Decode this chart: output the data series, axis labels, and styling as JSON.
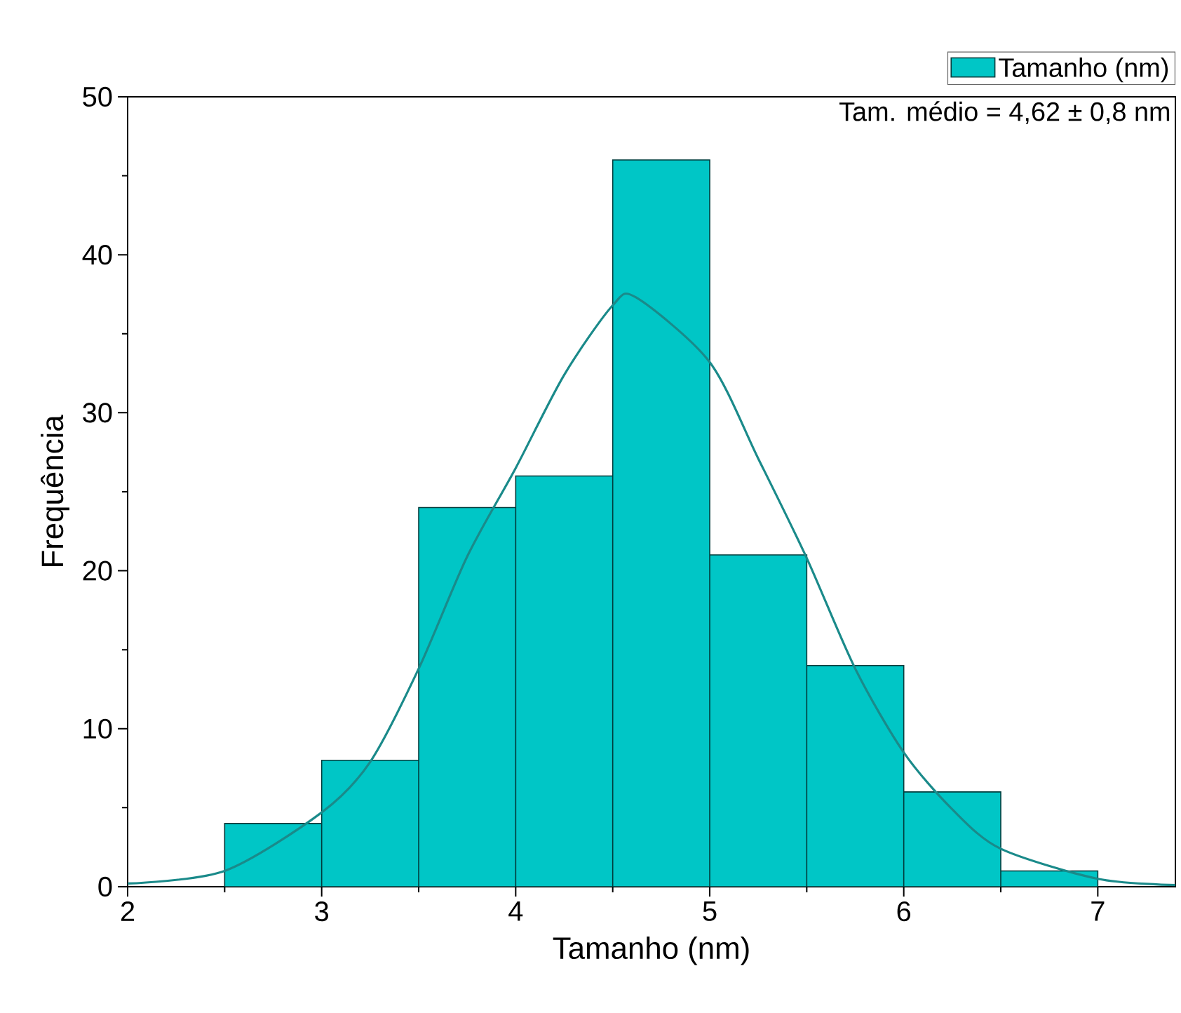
{
  "chart_data": {
    "type": "histogram",
    "xlabel": "Tamanho (nm)",
    "ylabel": "Frequência",
    "annotations": [
      "Tam. médio = 4,62 ± 0,8 nm"
    ],
    "xlim": [
      2,
      7.4
    ],
    "xticks": [
      2,
      3,
      4,
      5,
      6,
      7
    ],
    "ylim": [
      0,
      50
    ],
    "yticks": [
      0,
      10,
      20,
      30,
      40,
      50
    ],
    "legend": "top right",
    "grid": false,
    "series": [
      {
        "name": "Tamanho (nm)",
        "color": "#00c6c6",
        "bins": [
          2.5,
          3,
          3.5,
          4,
          4.5,
          5,
          5.5,
          6,
          6.5,
          7
        ],
        "values": [
          4,
          8,
          24,
          26,
          46,
          21,
          14,
          6,
          1
        ]
      },
      {
        "type": "line",
        "color": "#1a8a8a",
        "x": [
          2,
          2.5,
          3,
          3.25,
          3.5,
          3.75,
          4,
          4.25,
          4.5,
          4.62,
          5,
          5.25,
          5.5,
          5.75,
          6,
          6.25,
          6.5,
          7,
          7.4
        ],
        "values": [
          0.2,
          1.0,
          4.7,
          7.9,
          13.8,
          20.9,
          26.5,
          32.4,
          36.8,
          37.3,
          33.2,
          27.1,
          20.8,
          13.8,
          8.5,
          4.9,
          2.4,
          0.5,
          0.1
        ]
      }
    ]
  }
}
